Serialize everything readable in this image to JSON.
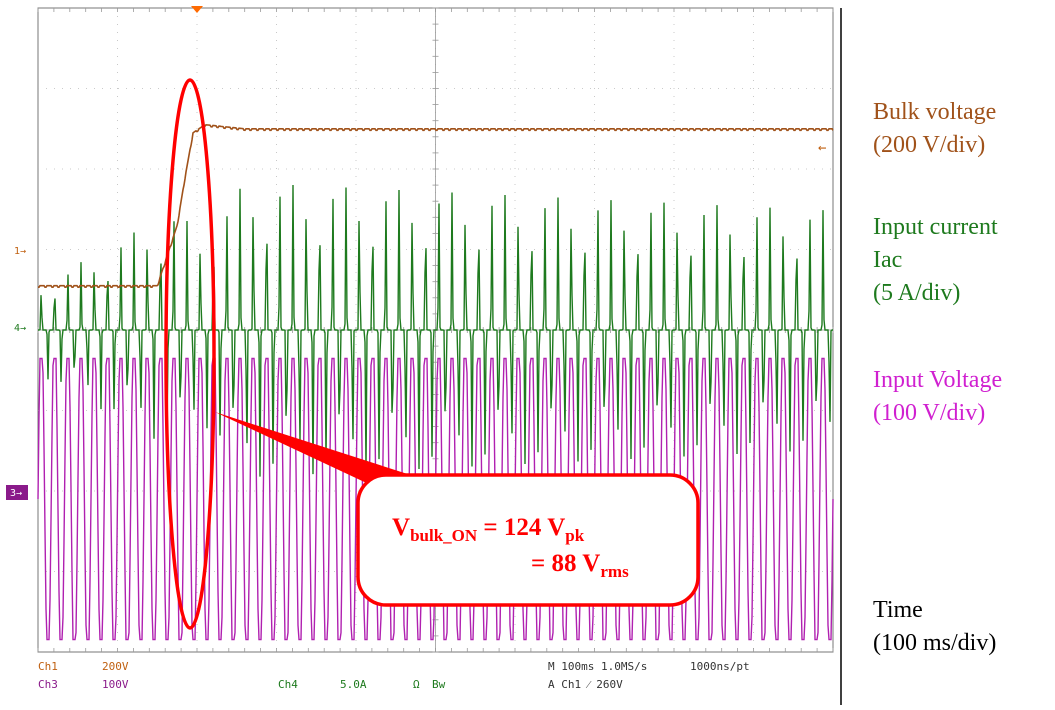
{
  "chart_data": {
    "type": "line",
    "title": "",
    "x_unit": "ms",
    "xlim": [
      0,
      1000
    ],
    "divisions": {
      "x": 10,
      "y": 8
    },
    "grid": true,
    "series": [
      {
        "name": "Bulk voltage",
        "scale": "200 V/div",
        "color": "#a0521a",
        "x": [
          0,
          140,
          150,
          175,
          185,
          195,
          210,
          260,
          270,
          1000
        ],
        "y": [
          0.95,
          0.95,
          0.95,
          1.7,
          2.3,
          2.85,
          2.95,
          2.9,
          2.9,
          2.9
        ]
      },
      {
        "name": "Input current Iac",
        "scale": "5 A/div",
        "color": "#1e7a1e",
        "description_values": [
          {
            "x": 0,
            "peak_div": 0.55
          },
          {
            "x": 170,
            "peak_div": 1.5
          },
          {
            "x": 210,
            "peak_div": 1.2
          },
          {
            "x": 260,
            "peak_div": 1.85
          },
          {
            "x": 1000,
            "peak_div": 1.5
          }
        ]
      },
      {
        "name": "Input Voltage",
        "scale": "100 V/div",
        "color": "#b020b0",
        "amplitude_div": 1.8,
        "cycles_per_div": 6
      }
    ],
    "markers": {
      "ch1": "1",
      "ch4": "4",
      "ch3": "3"
    },
    "annotation": {
      "line1_main": "V",
      "line1_sub": "bulk_ON",
      "line1_rest": " = 124 V",
      "line1_sub2": "pk",
      "line2_main": "= 88 V",
      "line2_sub": "rms"
    }
  },
  "legend": {
    "bulk": [
      "Bulk voltage",
      "(200 V/div)"
    ],
    "current": [
      "Input current",
      "Iac",
      "(5 A/div)"
    ],
    "input_voltage": [
      "Input Voltage",
      "(100 V/div)"
    ],
    "time": [
      "Time",
      "(100 ms/div)"
    ]
  },
  "status_bar": {
    "ch1_label": "Ch1",
    "ch1_scale": "200V",
    "ch3_label": "Ch3",
    "ch3_scale": "100V",
    "ch4_label": "Ch4",
    "ch4_scale": "5.0A",
    "ohm": "Ω",
    "bw": "Bw",
    "timebase": "M 100ms 1.0MS/s",
    "resolution": "1000ns/pt",
    "trigger": "A  Ch1  ⁄  260V"
  },
  "colors": {
    "bulk": "#a0521a",
    "current": "#1e7a1e",
    "input_voltage": "#d020d0",
    "callout": "#ff0000",
    "ch3_marker_bg": "#8a1a8a",
    "status_orange": "#c06010",
    "status_purple": "#8a1a8a",
    "status_green": "#1e7a1e"
  }
}
